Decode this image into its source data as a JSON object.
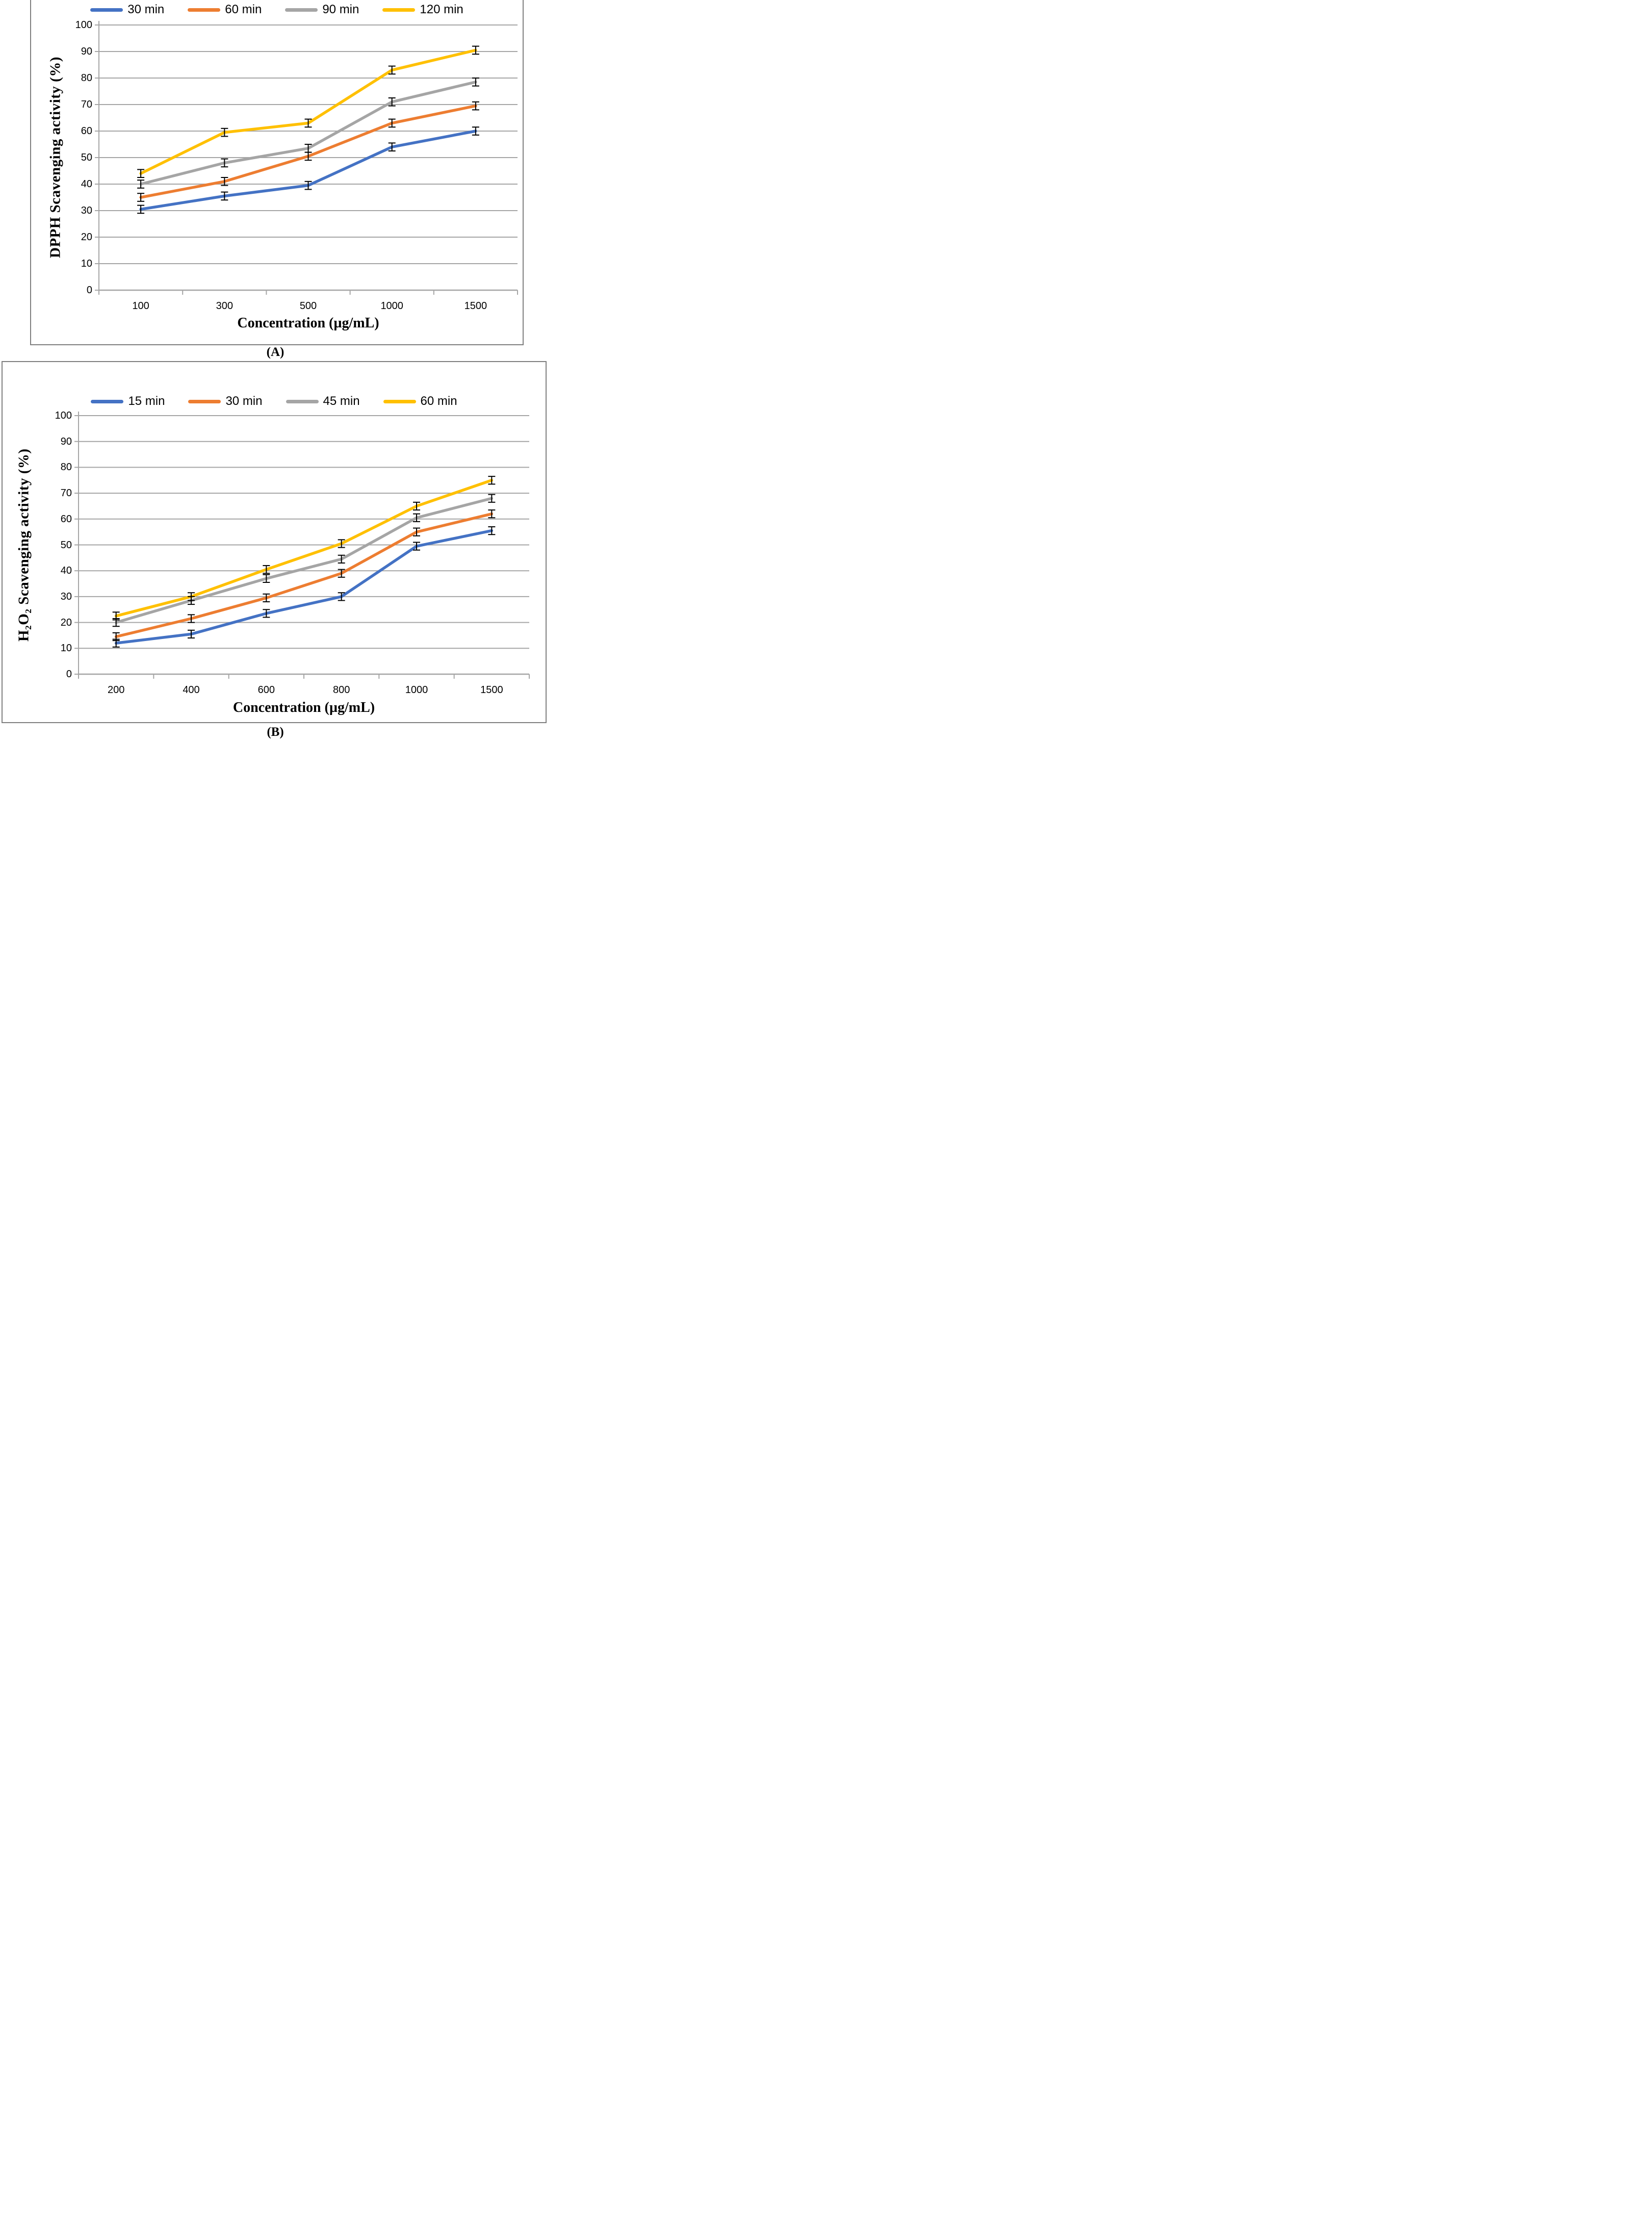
{
  "styles": {
    "grid_color": "#a6a6a6",
    "axis_color": "#a6a6a6",
    "panel_border_color": "#7f7f7f",
    "error_bar_color": "#000000",
    "text_color": "#000000",
    "series_colors": [
      "#4472C4",
      "#ED7D31",
      "#A5A5A5",
      "#FFC000"
    ]
  },
  "chart_data": [
    {
      "type": "line",
      "panel": "A",
      "caption": "(A)",
      "xlabel": "Concentration (µg/mL)",
      "ylabel": "DPPH Scavenging activity (%)",
      "categories": [
        "100",
        "300",
        "500",
        "1000",
        "1500"
      ],
      "series": [
        {
          "name": "30 min",
          "color": "#4472C4",
          "values": [
            30.5,
            35.5,
            39.5,
            54,
            60
          ]
        },
        {
          "name": "60 min",
          "color": "#ED7D31",
          "values": [
            35,
            41,
            50.5,
            63,
            69.5
          ]
        },
        {
          "name": "90 min",
          "color": "#A5A5A5",
          "values": [
            40,
            48,
            53.5,
            71,
            78.5
          ]
        },
        {
          "name": "120 min",
          "color": "#FFC000",
          "values": [
            44,
            59.5,
            63,
            83,
            90.5
          ]
        }
      ],
      "error_bar": 1.5,
      "ylim": [
        0,
        100
      ],
      "ytick_step": 10,
      "grid": true,
      "legend_position": "top"
    },
    {
      "type": "line",
      "panel": "B",
      "caption": "(B)",
      "xlabel": "Concentration (µg/mL)",
      "ylabel": "H₂O₂ Scavenging activity (%)",
      "categories": [
        "200",
        "400",
        "600",
        "800",
        "1000",
        "1500"
      ],
      "series": [
        {
          "name": "15 min",
          "color": "#4472C4",
          "values": [
            12,
            15.5,
            23.5,
            30,
            49.5,
            55.5
          ]
        },
        {
          "name": "30 min",
          "color": "#ED7D31",
          "values": [
            14.5,
            21.5,
            29.5,
            39,
            55,
            62
          ]
        },
        {
          "name": "45 min",
          "color": "#A5A5A5",
          "values": [
            20,
            28.5,
            37,
            44.5,
            60.5,
            68
          ]
        },
        {
          "name": "60 min",
          "color": "#FFC000",
          "values": [
            22.5,
            30,
            40.5,
            50.5,
            65,
            75
          ]
        }
      ],
      "error_bar": 1.5,
      "ylim": [
        0,
        100
      ],
      "ytick_step": 10,
      "grid": true,
      "legend_position": "top"
    }
  ]
}
